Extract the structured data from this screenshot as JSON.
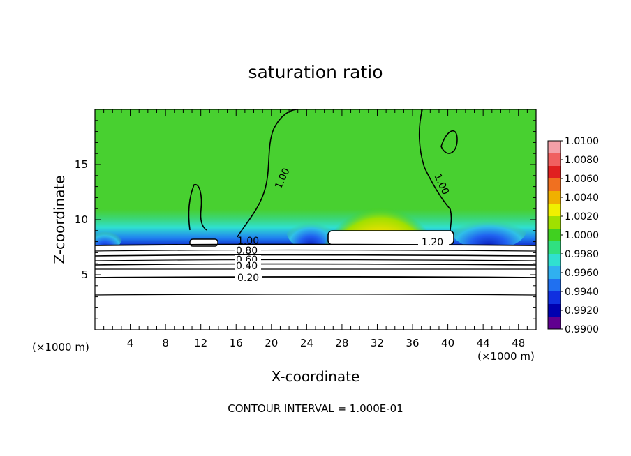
{
  "chart_data": {
    "type": "heatmap",
    "title": "saturation ratio",
    "xlabel": "X-coordinate",
    "ylabel": "Z-coordinate",
    "x_unit": "(×1000 m)",
    "xlim": [
      0,
      50
    ],
    "ylim": [
      0,
      20
    ],
    "x_ticks": [
      "4",
      "8",
      "12",
      "16",
      "20",
      "24",
      "28",
      "32",
      "36",
      "40",
      "44",
      "48"
    ],
    "y_ticks": [
      "5",
      "10",
      "15"
    ],
    "colorbar": {
      "labels": [
        "1.0100",
        "1.0080",
        "1.0060",
        "1.0040",
        "1.0020",
        "1.0000",
        "0.9980",
        "0.9960",
        "0.9940",
        "0.9920",
        "0.9900"
      ],
      "colors": [
        "#f4a0a8",
        "#f06060",
        "#e02020",
        "#f07020",
        "#f0b000",
        "#f0f000",
        "#a0e000",
        "#40d020",
        "#30e080",
        "#30e0d0",
        "#30b0f0",
        "#2070f0",
        "#1030e0",
        "#0000b0",
        "#600090"
      ]
    },
    "contour_labels": [
      "1.00",
      "1.00",
      "1.00",
      "1.20",
      "0.80",
      "0.60",
      "0.40",
      "0.20"
    ],
    "contour_interval_text": "CONTOUR INTERVAL = 1.000E-01"
  }
}
